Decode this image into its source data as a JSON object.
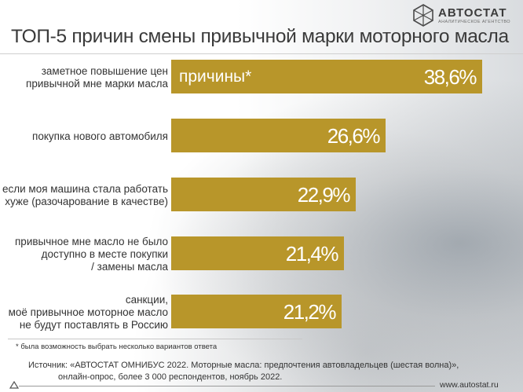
{
  "header": {
    "logo_name": "АВТОСТАТ",
    "logo_sub": "АНАЛИТИЧЕСКОЕ АГЕНТСТВО",
    "title": "ТОП-5 причин смены привычной марки моторного масла"
  },
  "chart_data": {
    "type": "bar",
    "orientation": "horizontal",
    "title": "ТОП-5 причин смены привычной марки моторного масла",
    "bar_inline_label": "причины*",
    "bar_color": "#b8962a",
    "categories": [
      [
        "заметное повышение цен",
        "привычной мне марки масла"
      ],
      [
        "покупка нового автомобиля"
      ],
      [
        "если моя машина стала работать",
        "хуже (разочарование в качестве)"
      ],
      [
        "привычное мне масло не было",
        "доступно в месте покупки",
        "/ замены масла"
      ],
      [
        "санкции,",
        "моё привычное моторное масло",
        "не будут поставлять в Россию"
      ]
    ],
    "values": [
      38.6,
      26.6,
      22.9,
      21.4,
      21.2
    ],
    "value_labels": [
      "38,6%",
      "26,6%",
      "22,9%",
      "21,4%",
      "21,2%"
    ],
    "xlim": [
      0,
      40
    ]
  },
  "footer": {
    "note": "* была возможность выбрать несколько вариантов ответа",
    "source_line1": "Источник: «АВТОСТАТ ОМНИБУС 2022. Моторные масла: предпочтения автовладельцев (шестая волна)»,",
    "source_line2": "онлайн-опрос, более 3 000 респондентов, ноябрь 2022.",
    "site": "www.autostat.ru"
  }
}
